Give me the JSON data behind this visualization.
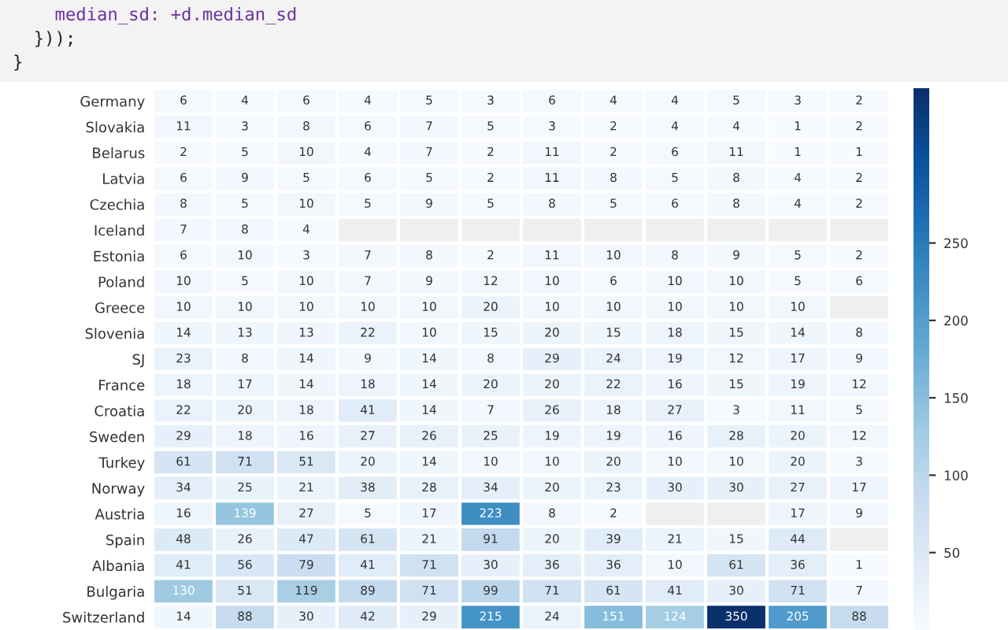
{
  "chart_data": {
    "type": "heatmap",
    "annotations": [
      "    median_sd: +d.median_sd",
      "  }));",
      "}"
    ],
    "categories": [
      null,
      null,
      null,
      null,
      null,
      null,
      null,
      null,
      null,
      null,
      null,
      null
    ],
    "y_categories": [
      "Germany",
      "Slovakia",
      "Belarus",
      "Latvia",
      "Czechia",
      "Iceland",
      "Estonia",
      "Poland",
      "Greece",
      "Slovenia",
      "SJ",
      "France",
      "Croatia",
      "Sweden",
      "Turkey",
      "Norway",
      "Austria",
      "Spain",
      "Albania",
      "Bulgaria",
      "Switzerland"
    ],
    "cells": [
      [
        6,
        4,
        6,
        4,
        5,
        3,
        6,
        4,
        4,
        5,
        3,
        2
      ],
      [
        11,
        3,
        8,
        6,
        7,
        5,
        3,
        2,
        4,
        4,
        1,
        2
      ],
      [
        2,
        5,
        10,
        4,
        7,
        2,
        11,
        2,
        6,
        11,
        1,
        1
      ],
      [
        6,
        9,
        5,
        6,
        5,
        2,
        11,
        8,
        5,
        8,
        4,
        2
      ],
      [
        8,
        5,
        10,
        5,
        9,
        5,
        8,
        5,
        6,
        8,
        4,
        2
      ],
      [
        7,
        8,
        4,
        null,
        null,
        null,
        null,
        null,
        null,
        null,
        null,
        null
      ],
      [
        6,
        10,
        3,
        7,
        8,
        2,
        11,
        10,
        8,
        9,
        5,
        2
      ],
      [
        10,
        5,
        10,
        7,
        9,
        12,
        10,
        6,
        10,
        10,
        5,
        6
      ],
      [
        10,
        10,
        10,
        10,
        10,
        20,
        10,
        10,
        10,
        10,
        10,
        null
      ],
      [
        14,
        13,
        13,
        22,
        10,
        15,
        20,
        15,
        18,
        15,
        14,
        8
      ],
      [
        23,
        8,
        14,
        9,
        14,
        8,
        29,
        24,
        19,
        12,
        17,
        9
      ],
      [
        18,
        17,
        14,
        18,
        14,
        20,
        20,
        22,
        16,
        15,
        19,
        12
      ],
      [
        22,
        20,
        18,
        41,
        14,
        7,
        26,
        18,
        27,
        3,
        11,
        5
      ],
      [
        29,
        18,
        16,
        27,
        26,
        25,
        19,
        19,
        16,
        28,
        20,
        12
      ],
      [
        61,
        71,
        51,
        20,
        14,
        10,
        10,
        20,
        10,
        10,
        20,
        3
      ],
      [
        34,
        25,
        21,
        38,
        28,
        34,
        20,
        23,
        30,
        30,
        27,
        17
      ],
      [
        16,
        139,
        27,
        5,
        17,
        223,
        8,
        2,
        null,
        null,
        17,
        9
      ],
      [
        48,
        26,
        47,
        61,
        21,
        91,
        20,
        39,
        21,
        15,
        44,
        null
      ],
      [
        41,
        56,
        79,
        41,
        71,
        30,
        36,
        36,
        10,
        61,
        36,
        1
      ],
      [
        130,
        51,
        119,
        89,
        71,
        99,
        71,
        61,
        41,
        30,
        71,
        7
      ],
      [
        14,
        88,
        30,
        42,
        29,
        215,
        24,
        151,
        124,
        350,
        205,
        88
      ]
    ],
    "data_labels": true,
    "clim": [
      0,
      350
    ],
    "cticks": [
      50,
      100,
      150,
      200,
      250
    ]
  }
}
